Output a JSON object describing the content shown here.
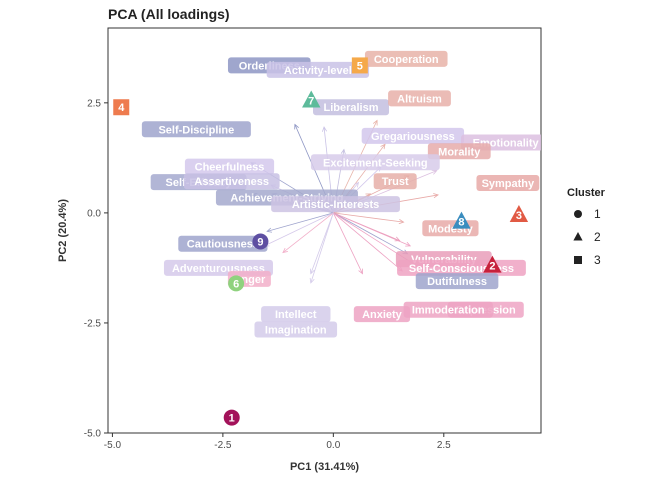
{
  "chart_data": {
    "type": "scatter",
    "title": "PCA (All loadings)",
    "xlabel": "PC1 (31.41%)",
    "ylabel": "PC2 (20.4%)",
    "xlim": [
      -5.1,
      4.7
    ],
    "ylim": [
      -5.0,
      4.2
    ],
    "x_ticks": [
      -5.0,
      -2.5,
      0.0,
      2.5
    ],
    "x_tick_labels": [
      "-5.0",
      "-2.5",
      "0.0",
      "2.5"
    ],
    "y_ticks": [
      -5.0,
      -2.5,
      0.0,
      2.5
    ],
    "y_tick_labels": [
      "-5.0",
      "-2.5",
      "0.0",
      "2.5"
    ],
    "grid": false,
    "legend": {
      "title": "Cluster",
      "position": "right",
      "entries": [
        {
          "label": "1",
          "shape": "circle"
        },
        {
          "label": "2",
          "shape": "triangle"
        },
        {
          "label": "3",
          "shape": "square"
        }
      ]
    },
    "points": [
      {
        "label": "1",
        "x": -2.3,
        "y": -4.65,
        "cluster": "1",
        "color": "#A3125A"
      },
      {
        "label": "2",
        "x": 3.6,
        "y": -1.2,
        "cluster": "2",
        "color": "#C7203B"
      },
      {
        "label": "3",
        "x": 4.2,
        "y": -0.05,
        "cluster": "2",
        "color": "#E15A44"
      },
      {
        "label": "4",
        "x": -4.8,
        "y": 2.4,
        "cluster": "3",
        "color": "#EE7B4E"
      },
      {
        "label": "5",
        "x": 0.6,
        "y": 3.35,
        "cluster": "3",
        "color": "#F5A94A"
      },
      {
        "label": "6",
        "x": -2.2,
        "y": -1.6,
        "cluster": "1",
        "color": "#8FD27E"
      },
      {
        "label": "7",
        "x": -0.5,
        "y": 2.55,
        "cluster": "2",
        "color": "#5DBB9B"
      },
      {
        "label": "8",
        "x": 2.9,
        "y": -0.2,
        "cluster": "2",
        "color": "#3A8DBF"
      },
      {
        "label": "9",
        "x": -1.65,
        "y": -0.65,
        "cluster": "1",
        "color": "#5E4FA2"
      }
    ],
    "loadings": [
      {
        "name": "Orderliness",
        "x": -1.45,
        "y": 3.35,
        "color": "#8E96C4"
      },
      {
        "name": "Activity-level",
        "x": -0.35,
        "y": 3.25,
        "color": "#C9C2E6"
      },
      {
        "name": "Cooperation",
        "x": 1.65,
        "y": 3.5,
        "color": "#E8B3A8"
      },
      {
        "name": "Liberalism",
        "x": 0.4,
        "y": 2.4,
        "color": "#C3BEDF"
      },
      {
        "name": "Altruism",
        "x": 1.95,
        "y": 2.6,
        "color": "#E7B0A9"
      },
      {
        "name": "Self-Discipline",
        "x": -3.1,
        "y": 1.9,
        "color": "#9FA5CD"
      },
      {
        "name": "Gregariousness",
        "x": 1.8,
        "y": 1.75,
        "color": "#D2C7EC"
      },
      {
        "name": "Emotionality",
        "x": 3.9,
        "y": 1.6,
        "color": "#DCC0E0"
      },
      {
        "name": "Morality",
        "x": 2.85,
        "y": 1.4,
        "color": "#E6ACAA"
      },
      {
        "name": "Cheerfulness",
        "x": -2.35,
        "y": 1.05,
        "color": "#D4C8EC"
      },
      {
        "name": "Excitement-Seeking",
        "x": 0.95,
        "y": 1.15,
        "color": "#D7CBEA"
      },
      {
        "name": "Self-Efficacy",
        "x": -3.05,
        "y": 0.7,
        "color": "#A4A9CF"
      },
      {
        "name": "Assertiveness",
        "x": -2.3,
        "y": 0.72,
        "color": "#C8C1E4"
      },
      {
        "name": "Trust",
        "x": 1.4,
        "y": 0.72,
        "color": "#E6AFA8"
      },
      {
        "name": "Sympathy",
        "x": 3.95,
        "y": 0.68,
        "color": "#E8A9A7"
      },
      {
        "name": "Achievement-Striving",
        "x": -1.05,
        "y": 0.35,
        "color": "#A5A9CE"
      },
      {
        "name": "Artistic-Interests",
        "x": 0.05,
        "y": 0.2,
        "color": "#CDC3E3"
      },
      {
        "name": "Modesty",
        "x": 2.65,
        "y": -0.35,
        "color": "#E8AAA8"
      },
      {
        "name": "Cautiousness",
        "x": -2.5,
        "y": -0.7,
        "color": "#9FA4CD"
      },
      {
        "name": "Vulnerability",
        "x": 2.5,
        "y": -1.05,
        "color": "#E99DBA"
      },
      {
        "name": "Self-Consciousness",
        "x": 2.9,
        "y": -1.25,
        "color": "#EEA2C2"
      },
      {
        "name": "Adventurousness",
        "x": -2.6,
        "y": -1.25,
        "color": "#D5C9EA"
      },
      {
        "name": "Anger",
        "x": -1.9,
        "y": -1.5,
        "color": "#F2AFC9"
      },
      {
        "name": "Dutifulness",
        "x": 2.8,
        "y": -1.55,
        "color": "#9FA4CD"
      },
      {
        "name": "Depression",
        "x": 3.45,
        "y": -2.2,
        "color": "#EEA4C4"
      },
      {
        "name": "Immoderation",
        "x": 2.6,
        "y": -2.2,
        "color": "#EDA3C3"
      },
      {
        "name": "Intellect",
        "x": -0.85,
        "y": -2.3,
        "color": "#D4CBEA"
      },
      {
        "name": "Anxiety",
        "x": 1.1,
        "y": -2.3,
        "color": "#EDA3C3"
      },
      {
        "name": "Imagination",
        "x": -0.85,
        "y": -2.65,
        "color": "#D4CBEA"
      }
    ]
  }
}
